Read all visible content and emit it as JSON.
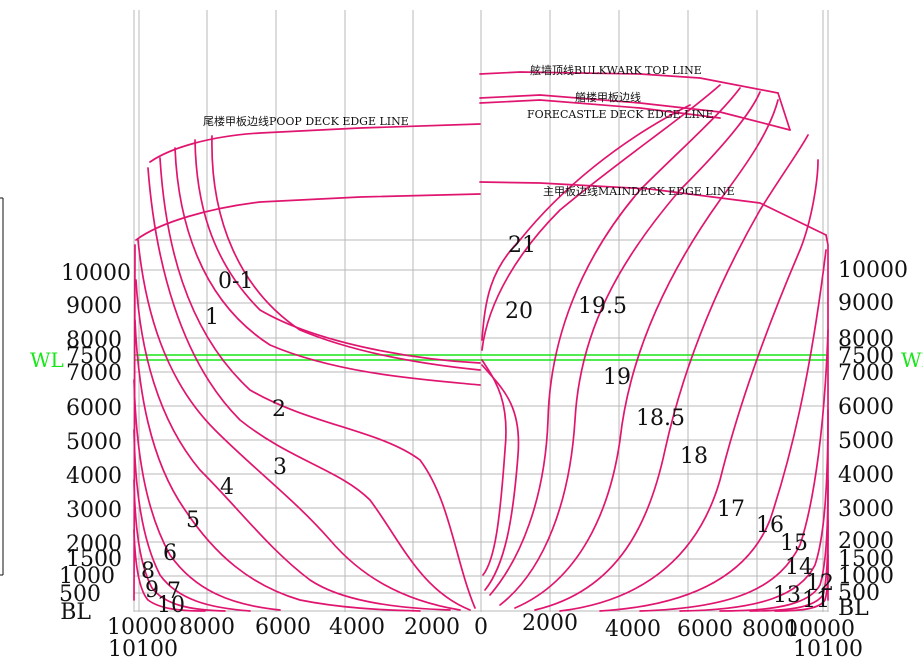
{
  "colors": {
    "curve": "#e0156f",
    "grid": "#b9b9b9",
    "waterline": "#19e619",
    "text": "#111111"
  },
  "edge_labels": {
    "bulkwark_top": "舷墙顶线BULKWARK TOP LINE",
    "forecastle_cn": "艏楼甲板边线",
    "forecastle_en": "FORECASTLE DECK EDGE LINE",
    "poop_deck": "尾楼甲板边线POOP DECK EDGE LINE",
    "main_deck": "主甲板边线MAINDECK EDGE LINE"
  },
  "waterline": {
    "label": "WL",
    "level": 7500
  },
  "height_labels": [
    "10000",
    "9000",
    "8000",
    "7500",
    "7000",
    "6000",
    "5000",
    "4000",
    "3000",
    "2000",
    "1500",
    "1000",
    "500",
    "BL"
  ],
  "width_labels_left": [
    "10000",
    "8000",
    "6000",
    "4000",
    "2000",
    "0"
  ],
  "width_labels_right": [
    "2000",
    "4000",
    "6000",
    "8000",
    "10000"
  ],
  "half_breadth_label": "10100",
  "station_labels_aft": [
    "0-1",
    "1",
    "2",
    "3",
    "4",
    "5",
    "6",
    "7",
    "8",
    "9",
    "10"
  ],
  "station_labels_fwd": [
    "21",
    "20",
    "19.5",
    "19",
    "18.5",
    "18",
    "17",
    "16",
    "15",
    "14",
    "13",
    "12",
    "11"
  ]
}
